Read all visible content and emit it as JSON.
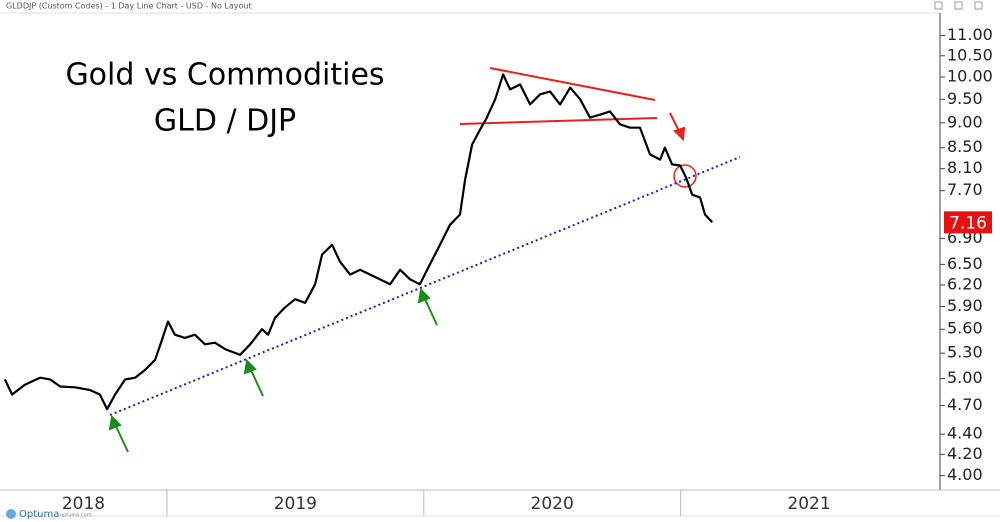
{
  "header": "GLDDJP (Custom Codes) - 1 Day Line Chart - USD - No Layout",
  "footer": {
    "brand": "Optuma",
    "site": "optuma.com"
  },
  "chart_data": {
    "type": "line",
    "title": "Gold vs Commodities",
    "subtitle": "GLD / DJP",
    "log_scale": true,
    "grid": false,
    "last_value": 7.16,
    "xlim": [
      2018.35,
      2022.01
    ],
    "xticks": [
      {
        "value": 2018,
        "label": "2018"
      },
      {
        "value": 2019,
        "label": "2019"
      },
      {
        "value": 2020,
        "label": "2020"
      },
      {
        "value": 2021,
        "label": "2021"
      }
    ],
    "ylim": [
      3.87,
      11.8
    ],
    "yticks": [
      {
        "value": 4,
        "label": "4.00"
      },
      {
        "value": 4.2,
        "label": "4.20"
      },
      {
        "value": 4.4,
        "label": "4.40"
      },
      {
        "value": 4.7,
        "label": "4.70"
      },
      {
        "value": 5,
        "label": "5.00"
      },
      {
        "value": 5.3,
        "label": "5.30"
      },
      {
        "value": 5.6,
        "label": "5.60"
      },
      {
        "value": 5.9,
        "label": "5.90"
      },
      {
        "value": 6.2,
        "label": "6.20"
      },
      {
        "value": 6.5,
        "label": "6.50"
      },
      {
        "value": 6.9,
        "label": "6.90"
      },
      {
        "value": 7.7,
        "label": "7.70"
      },
      {
        "value": 8.1,
        "label": "8.10"
      },
      {
        "value": 8.5,
        "label": "8.50"
      },
      {
        "value": 9,
        "label": "9.00"
      },
      {
        "value": 9.5,
        "label": "9.50"
      },
      {
        "value": 10,
        "label": "10.00"
      },
      {
        "value": 10.5,
        "label": "10.50"
      },
      {
        "value": 11,
        "label": "11.00"
      }
    ],
    "x": [
      2018.369,
      2018.397,
      2018.447,
      2018.506,
      2018.545,
      2018.584,
      2018.642,
      2018.7,
      2018.739,
      2018.767,
      2018.798,
      2018.837,
      2018.876,
      2018.915,
      2018.954,
      2018.981,
      2019.004,
      2019.031,
      2019.07,
      2019.109,
      2019.148,
      2019.187,
      2019.226,
      2019.285,
      2019.324,
      2019.37,
      2019.394,
      2019.421,
      2019.46,
      2019.499,
      2019.538,
      2019.577,
      2019.604,
      2019.643,
      2019.674,
      2019.713,
      2019.752,
      2019.791,
      2019.83,
      2019.869,
      2019.908,
      2019.947,
      2019.985,
      2020.024,
      2020.063,
      2020.102,
      2020.141,
      2020.161,
      2020.188,
      2020.219,
      2020.242,
      2020.278,
      2020.309,
      2020.336,
      2020.375,
      2020.414,
      2020.453,
      2020.492,
      2020.531,
      2020.57,
      2020.609,
      2020.647,
      2020.686,
      2020.725,
      2020.764,
      2020.803,
      2020.842,
      2020.881,
      2020.92,
      2020.939,
      2020.967,
      2020.998,
      2021.021,
      2021.045,
      2021.076,
      2021.095,
      2021.123
    ],
    "series": [
      {
        "name": "GLDDJP",
        "color": "#000000",
        "values": [
          4.99,
          4.82,
          4.93,
          5.01,
          4.99,
          4.91,
          4.9,
          4.87,
          4.82,
          4.66,
          4.82,
          4.99,
          5.01,
          5.1,
          5.22,
          5.47,
          5.7,
          5.53,
          5.49,
          5.53,
          5.41,
          5.43,
          5.35,
          5.28,
          5.41,
          5.6,
          5.53,
          5.75,
          5.89,
          6.0,
          5.95,
          6.21,
          6.65,
          6.8,
          6.54,
          6.35,
          6.42,
          6.35,
          6.28,
          6.21,
          6.42,
          6.28,
          6.21,
          6.5,
          6.8,
          7.12,
          7.29,
          7.9,
          8.56,
          8.86,
          9.07,
          9.5,
          10.06,
          9.72,
          9.83,
          9.39,
          9.61,
          9.67,
          9.39,
          9.76,
          9.5,
          9.11,
          9.17,
          9.24,
          8.97,
          8.9,
          8.9,
          8.37,
          8.27,
          8.5,
          8.18,
          8.16,
          7.94,
          7.63,
          7.58,
          7.29,
          7.16
        ]
      }
    ]
  }
}
